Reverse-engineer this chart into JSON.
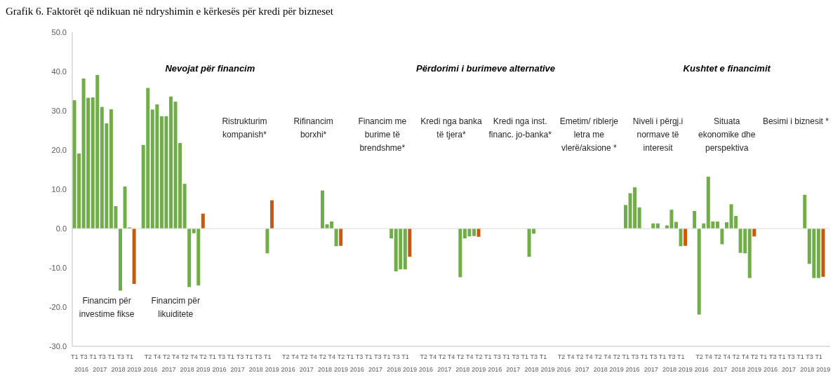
{
  "chart_data": {
    "type": "bar",
    "title": "Grafik 6. Faktorët që ndikuan në ndryshimin e kërkesës për kredi për bizneset",
    "categories": [
      "T1",
      null,
      "T3",
      null,
      "T1",
      null,
      "T3",
      null,
      "T1",
      null,
      "T3",
      null,
      "T1",
      null,
      null,
      null,
      "T2",
      null,
      "T4",
      null,
      "T2",
      null,
      "T4",
      null,
      "T2",
      null,
      "T4",
      null,
      "T2",
      null,
      "T1",
      null,
      "T3",
      null,
      "T1",
      null,
      "T3",
      null,
      "T1",
      null,
      "T3",
      null,
      "T1",
      null,
      null,
      null,
      "T2",
      null,
      "T4",
      null,
      "T2",
      null,
      "T4",
      null,
      "T2",
      null,
      "T4",
      null,
      "T2",
      null,
      "T1",
      null,
      "T3",
      null,
      "T1",
      null,
      "T3",
      null,
      "T1",
      null,
      "T3",
      null,
      "T1",
      null,
      null,
      null,
      "T2",
      null,
      "T4",
      null,
      "T2",
      null,
      "T4",
      null,
      "T2",
      null,
      "T4",
      null,
      "T2",
      null,
      "T1",
      null,
      "T3",
      null,
      "T1",
      null,
      "T3",
      null,
      "T1",
      null,
      "T3",
      null,
      "T1",
      null,
      null,
      null,
      "T2",
      null,
      "T4",
      null,
      "T2",
      null,
      "T4",
      null,
      "T2",
      null,
      "T4",
      null,
      "T2",
      null,
      "T1",
      null,
      "T3",
      null,
      "T1",
      null,
      "T3",
      null,
      "T1",
      null,
      "T3",
      null,
      "T1",
      null,
      null,
      null,
      "T2",
      null,
      "T4",
      null,
      "T2",
      null,
      "T4",
      null,
      "T2",
      null,
      "T4",
      null,
      "T2",
      null,
      "T1",
      null,
      "T3",
      null,
      "T1",
      null,
      "T3",
      null,
      "T1",
      null,
      "T3",
      null,
      "T1",
      null,
      null
    ],
    "values": [
      32.7,
      19.1,
      38.2,
      33.3,
      33.4,
      39.1,
      31.0,
      26.8,
      30.4,
      5.7,
      -15.8,
      10.7,
      0.3,
      -14.1,
      null,
      21.3,
      35.8,
      30.3,
      31.6,
      28.6,
      28.6,
      33.6,
      32.3,
      21.8,
      11.4,
      -14.9,
      -1.2,
      -14.5,
      3.8,
      null,
      null,
      null,
      null,
      null,
      null,
      null,
      null,
      null,
      null,
      null,
      null,
      null,
      -6.3,
      7.2,
      null,
      null,
      null,
      null,
      null,
      null,
      null,
      null,
      null,
      null,
      9.7,
      1.1,
      1.8,
      -4.5,
      -4.4,
      null,
      null,
      null,
      null,
      null,
      null,
      null,
      null,
      null,
      null,
      -2.5,
      -10.9,
      -10.4,
      -10.4,
      -7.2,
      null,
      null,
      null,
      null,
      null,
      null,
      null,
      null,
      null,
      null,
      -12.4,
      -2.5,
      -2.0,
      -1.9,
      -2.1,
      null,
      null,
      null,
      null,
      null,
      null,
      null,
      null,
      null,
      null,
      -7.2,
      -1.3,
      null,
      null,
      null,
      null,
      null,
      null,
      null,
      null,
      null,
      null,
      null,
      null,
      null,
      null,
      null,
      null,
      null,
      null,
      null,
      6.0,
      9.0,
      10.5,
      5.4,
      null,
      null,
      1.3,
      1.3,
      null,
      0.8,
      4.8,
      1.7,
      -4.5,
      -4.4,
      null,
      4.5,
      -21.9,
      1.3,
      13.2,
      1.8,
      1.8,
      -4.0,
      1.6,
      6.2,
      3.2,
      -6.2,
      -6.3,
      -12.6,
      -2.0,
      null,
      null,
      null,
      null,
      null,
      null,
      null,
      null,
      null,
      null,
      8.6,
      -9.0,
      -12.6,
      -12.6,
      -12.3,
      null
    ],
    "colors": [
      "#70ad47",
      "#70ad47",
      "#70ad47",
      "#70ad47",
      "#70ad47",
      "#70ad47",
      "#70ad47",
      "#70ad47",
      "#70ad47",
      "#70ad47",
      "#70ad47",
      "#70ad47",
      "#70ad47",
      "#c55a11",
      "#70ad47",
      "#70ad47",
      "#70ad47",
      "#70ad47",
      "#70ad47",
      "#70ad47",
      "#70ad47",
      "#70ad47",
      "#70ad47",
      "#70ad47",
      "#70ad47",
      "#70ad47",
      "#70ad47",
      "#70ad47",
      "#c55a11",
      "#70ad47",
      "#70ad47",
      "#70ad47",
      "#70ad47",
      "#70ad47",
      "#70ad47",
      "#70ad47",
      "#70ad47",
      "#70ad47",
      "#70ad47",
      "#70ad47",
      "#70ad47",
      "#70ad47",
      "#70ad47",
      "#c55a11",
      "#70ad47",
      "#70ad47",
      "#70ad47",
      "#70ad47",
      "#70ad47",
      "#70ad47",
      "#70ad47",
      "#70ad47",
      "#70ad47",
      "#70ad47",
      "#70ad47",
      "#70ad47",
      "#70ad47",
      "#70ad47",
      "#c55a11",
      "#70ad47",
      "#70ad47",
      "#70ad47",
      "#70ad47",
      "#70ad47",
      "#70ad47",
      "#70ad47",
      "#70ad47",
      "#70ad47",
      "#70ad47",
      "#70ad47",
      "#70ad47",
      "#70ad47",
      "#70ad47",
      "#c55a11",
      "#70ad47",
      "#70ad47",
      "#70ad47",
      "#70ad47",
      "#70ad47",
      "#70ad47",
      "#70ad47",
      "#70ad47",
      "#70ad47",
      "#70ad47",
      "#70ad47",
      "#70ad47",
      "#70ad47",
      "#70ad47",
      "#c55a11",
      "#70ad47",
      "#70ad47",
      "#70ad47",
      "#70ad47",
      "#70ad47",
      "#70ad47",
      "#70ad47",
      "#70ad47",
      "#70ad47",
      "#70ad47",
      "#70ad47",
      "#70ad47",
      "#70ad47",
      "#70ad47",
      "#c55a11",
      "#70ad47",
      "#70ad47",
      "#70ad47",
      "#70ad47",
      "#70ad47",
      "#70ad47",
      "#70ad47",
      "#70ad47",
      "#70ad47",
      "#70ad47",
      "#70ad47",
      "#70ad47",
      "#70ad47",
      "#70ad47",
      "#c55a11",
      "#70ad47",
      "#70ad47",
      "#70ad47",
      "#70ad47",
      "#70ad47",
      "#70ad47",
      "#70ad47",
      "#70ad47",
      "#70ad47",
      "#70ad47",
      "#70ad47",
      "#70ad47",
      "#70ad47",
      "#70ad47",
      "#c55a11",
      "#70ad47",
      "#70ad47",
      "#70ad47",
      "#70ad47",
      "#70ad47",
      "#70ad47",
      "#70ad47",
      "#70ad47",
      "#70ad47",
      "#70ad47",
      "#70ad47",
      "#70ad47",
      "#70ad47",
      "#70ad47",
      "#c55a11",
      "#70ad47",
      "#70ad47",
      "#70ad47",
      "#70ad47",
      "#70ad47",
      "#70ad47",
      "#70ad47",
      "#70ad47",
      "#70ad47",
      "#70ad47",
      "#70ad47",
      "#70ad47",
      "#70ad47",
      "#70ad47",
      "#c55a11",
      "#70ad47"
    ],
    "ylim": [
      -30,
      50
    ],
    "yticks": [
      {
        "value": -30,
        "label": "-30.0"
      },
      {
        "value": -20,
        "label": "-20.0"
      },
      {
        "value": -10,
        "label": "-10.0"
      },
      {
        "value": 0,
        "label": "0.0"
      },
      {
        "value": 10,
        "label": "10.0"
      },
      {
        "value": 20,
        "label": "20.0"
      },
      {
        "value": 30,
        "label": "30.0"
      },
      {
        "value": 40,
        "label": "40.0"
      },
      {
        "value": 50,
        "label": "50.0"
      }
    ],
    "ref_lines": [
      {
        "axis": "y",
        "value": 0,
        "color": "#d9d9d9"
      }
    ],
    "annotations": [
      "Nevojat për financim",
      "Përdorimi i burimeve alternative",
      "Kushtet e financimit",
      "Financim për investime fikse",
      "Financim për likuiditete",
      "Ristrukturim kompanish*",
      "Rifinancim borxhi*",
      "Financim me burime të brendshme*",
      "Kredi nga banka të tjera*",
      "Kredi nga inst. financ. jo-banka*",
      "Emetim/ riblerje letra me vlerë/aksione *",
      "Niveli i përgj.i normave të interesit",
      "Situata ekonomike dhe perspektiva",
      "Besimi i biznesit *",
      "2016",
      "2017",
      "2018",
      "2019",
      "2016",
      "2017",
      "2018",
      "2019",
      "2016",
      "2017",
      "2018",
      "2019",
      "2016",
      "2017",
      "2018",
      "2019",
      "2016",
      "2017",
      "2018",
      "2019",
      "2016",
      "2017",
      "2018",
      "2019",
      "2016",
      "2017",
      "2018",
      "2019",
      "2016",
      "2017",
      "2018",
      "2019",
      "2016",
      "2017",
      "2018",
      "2019",
      "2016",
      "2017",
      "2018",
      "2019",
      "2016",
      "2017",
      "2018",
      "2019"
    ]
  }
}
